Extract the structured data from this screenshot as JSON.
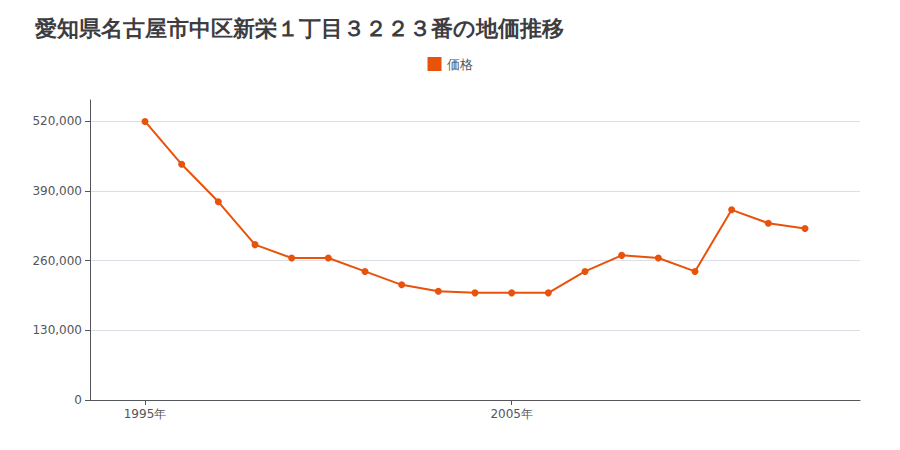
{
  "chart_data": {
    "type": "line",
    "title": "愛知県名古屋市中区新栄１丁目３２２３番の地価推移",
    "x": [
      1995,
      1996,
      1997,
      1998,
      1999,
      2000,
      2001,
      2002,
      2003,
      2004,
      2005,
      2006,
      2007,
      2008,
      2009,
      2010,
      2011,
      2012,
      2013
    ],
    "series": [
      {
        "name": "価格",
        "color": "#e8520a",
        "marker": "circle",
        "values": [
          520000,
          440000,
          370000,
          290000,
          265000,
          265000,
          240000,
          215000,
          203000,
          200000,
          200000,
          200000,
          240000,
          270000,
          265000,
          240000,
          355000,
          330000,
          320000
        ]
      }
    ],
    "xlim": [
      1993.5,
      2014.5
    ],
    "xticks": [
      {
        "value": 1995,
        "label": "1995年"
      },
      {
        "value": 2005,
        "label": "2005年"
      }
    ],
    "ylim": [
      0,
      560000
    ],
    "yticks": [
      0,
      {
        "value": 130000,
        "label": "130,000"
      },
      {
        "value": 260000,
        "label": "260,000"
      },
      {
        "value": 390000,
        "label": "390,000"
      },
      {
        "value": 520000,
        "label": "520,000"
      }
    ],
    "grid": true,
    "legend": "top"
  }
}
